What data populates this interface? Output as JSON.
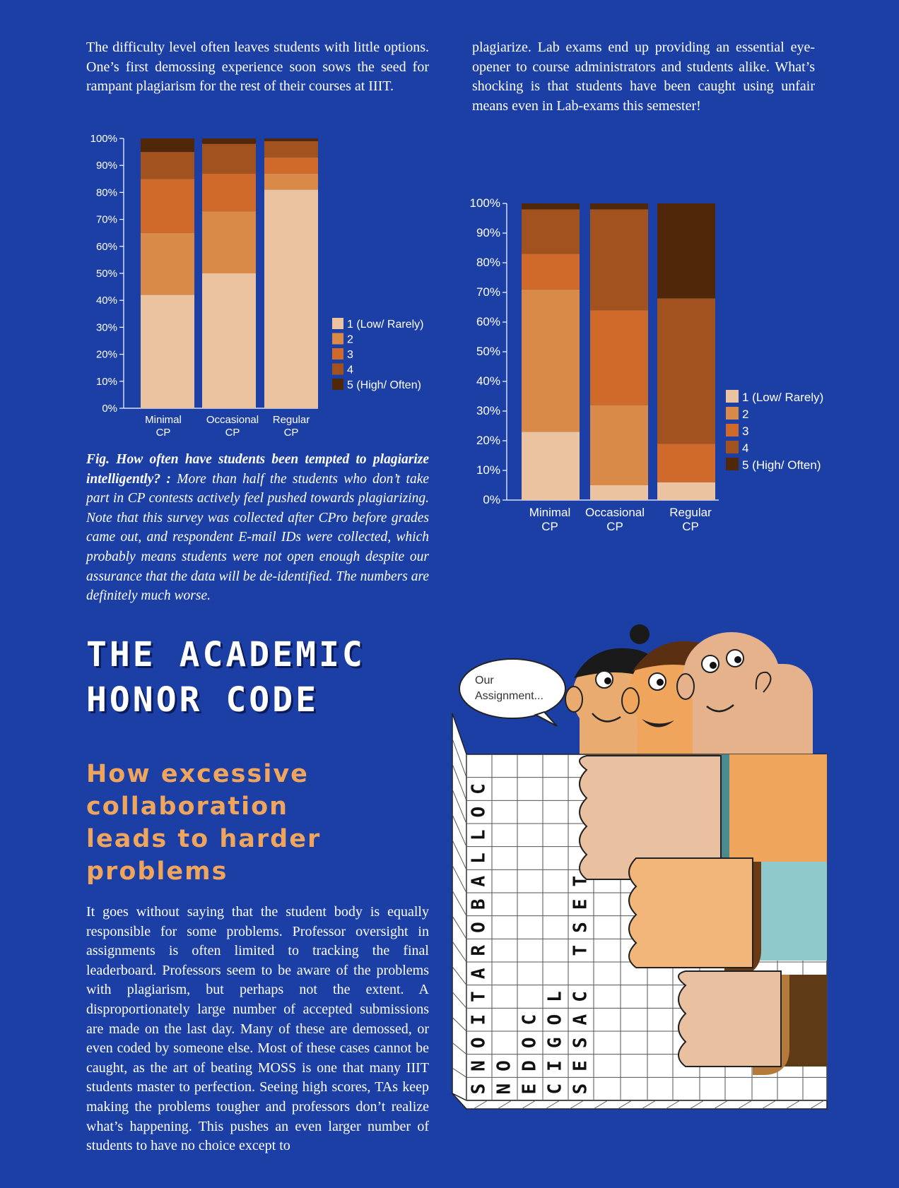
{
  "paragraphs": {
    "top_left": "The difficulty level often leaves students with little options. One’s first demossing experience soon sows the seed for rampant plagiarism for the rest of their courses at IIIT.",
    "top_right": "plagiarize. Lab exams end up providing an essential eye-opener to course administrators and students alike. What’s shocking is that students have been caught using unfair means even in Lab-exams this semester!",
    "bottom_left": "It goes without saying that the student body is equally responsible for some problems. Professor oversight in assignments is often limited to tracking the final leaderboard. Professors seem to be aware of the problems with plagiarism, but perhaps not the extent. A disproportionately large number of accepted submissions are made on the last day. Many of these are demossed, or even coded by someone else. Most of these cases cannot be caught, as the art of beating MOSS is one that many IIIT students master to perfection. Seeing high scores, TAs keep making the problems tougher and professors don’t realize what’s happening. This pushes an even larger number of students to have no choice except to"
  },
  "caption": {
    "bold": "Fig. How often have students been tempted to plagiarize intelligently? :",
    "text": " More than half the students who don’t take part in CP contests actively feel pushed towards plagiarizing. Note that this survey was collected after CPro before grades came out, and respondent E-mail IDs were collected, which probably means students were not open enough despite our assurance that the data will be de-identified. The numbers are definitely much worse."
  },
  "section_title": {
    "line1": "THE ACADEMIC",
    "line2": "HONOR CODE"
  },
  "subheading": {
    "lines": [
      "How excessive",
      "collaboration",
      "leads to harder",
      "problems"
    ]
  },
  "illustration": {
    "speech": [
      "Our",
      "Assignment..."
    ],
    "vertical_words": [
      "COLLABORATIONS",
      "ON",
      "CODE",
      "LOGIC",
      "TEST CASES"
    ]
  },
  "colors": {
    "background": "#1c3fa6",
    "level1": "#ebc3a0",
    "level2": "#d98a48",
    "level3": "#cf6a2a",
    "level4": "#a2521e",
    "level5": "#502708",
    "accent": "#f0a55c"
  },
  "chart_data": [
    {
      "type": "bar",
      "stacked": true,
      "title": "",
      "xlabel": "",
      "ylabel": "",
      "ylim": [
        0,
        100
      ],
      "yticks": [
        "0%",
        "10%",
        "20%",
        "30%",
        "40%",
        "50%",
        "60%",
        "70%",
        "80%",
        "90%",
        "100%"
      ],
      "categories": [
        [
          "Minimal",
          "CP"
        ],
        [
          "Occasional",
          "CP"
        ],
        [
          "Regular",
          "CP"
        ]
      ],
      "legend_position": "right",
      "series": [
        {
          "name": "1 (Low/ Rarely)",
          "color": "#ebc3a0",
          "values": [
            42,
            50,
            81
          ]
        },
        {
          "name": "2",
          "color": "#d98a48",
          "values": [
            23,
            23,
            6
          ]
        },
        {
          "name": "3",
          "color": "#cf6a2a",
          "values": [
            20,
            14,
            6
          ]
        },
        {
          "name": "4",
          "color": "#a2521e",
          "values": [
            10,
            11,
            6
          ]
        },
        {
          "name": "5 (High/ Often)",
          "color": "#502708",
          "values": [
            5,
            2,
            1
          ]
        }
      ]
    },
    {
      "type": "bar",
      "stacked": true,
      "title": "",
      "xlabel": "",
      "ylabel": "",
      "ylim": [
        0,
        100
      ],
      "yticks": [
        "0%",
        "10%",
        "20%",
        "30%",
        "40%",
        "50%",
        "60%",
        "70%",
        "80%",
        "90%",
        "100%"
      ],
      "categories": [
        [
          "Minimal",
          "CP"
        ],
        [
          "Occasional",
          "CP"
        ],
        [
          "Regular",
          "CP"
        ]
      ],
      "legend_position": "right",
      "series": [
        {
          "name": "1 (Low/ Rarely)",
          "color": "#ebc3a0",
          "values": [
            23,
            5,
            6
          ]
        },
        {
          "name": "2",
          "color": "#d98a48",
          "values": [
            48,
            27,
            0
          ]
        },
        {
          "name": "3",
          "color": "#cf6a2a",
          "values": [
            12,
            32,
            13
          ]
        },
        {
          "name": "4",
          "color": "#a2521e",
          "values": [
            15,
            34,
            49
          ]
        },
        {
          "name": "5 (High/ Often)",
          "color": "#502708",
          "values": [
            2,
            2,
            32
          ]
        }
      ]
    }
  ]
}
